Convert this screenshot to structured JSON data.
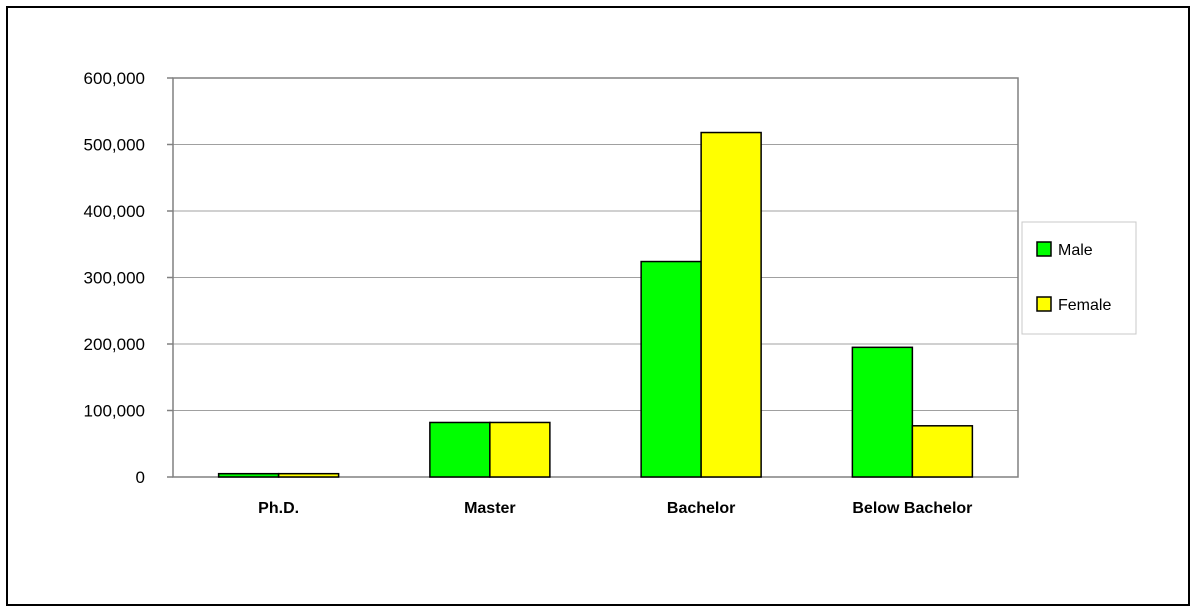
{
  "chart_data": {
    "type": "bar",
    "title": "",
    "xlabel": "",
    "ylabel": "",
    "categories": [
      "Ph.D.",
      "Master",
      "Bachelor",
      "Below  Bachelor"
    ],
    "series": [
      {
        "name": "Male",
        "color": "#00ff00",
        "values": [
          5000,
          82000,
          324000,
          195000
        ]
      },
      {
        "name": "Female",
        "color": "#ffff00",
        "values": [
          5000,
          82000,
          518000,
          77000
        ]
      }
    ],
    "ylim": [
      0,
      600000
    ],
    "yticks": [
      0,
      100000,
      200000,
      300000,
      400000,
      500000,
      600000
    ],
    "ytick_labels": [
      "0",
      "100,000",
      "200,000",
      "300,000",
      "400,000",
      "500,000",
      "600,000"
    ],
    "grid": true,
    "legend_position": "right"
  }
}
